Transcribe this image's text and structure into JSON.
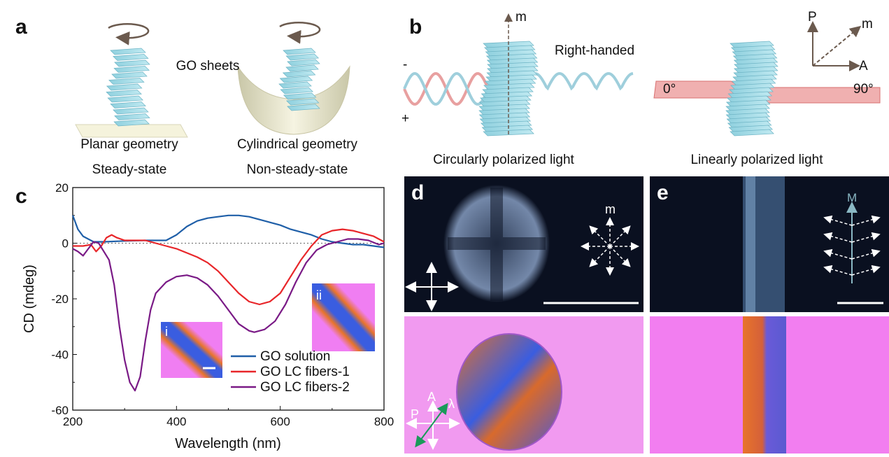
{
  "panels": {
    "a": {
      "label": "a",
      "go_sheets": "GO sheets",
      "planar": "Planar geometry",
      "cylindrical": "Cylindrical geometry",
      "steady": "Steady-state",
      "non_steady": "Non-steady-state"
    },
    "b": {
      "label": "b",
      "m": "m",
      "right_handed": "Right-handed",
      "minus": "-",
      "plus": "+",
      "circular": "Circularly polarized light",
      "linear": "Linearly polarized light",
      "angle0": "0°",
      "angle90": "90°",
      "P": "P",
      "A": "A",
      "m2": "m"
    },
    "c": {
      "label": "c",
      "inset_i": "i",
      "inset_ii": "ii"
    },
    "d": {
      "label": "d",
      "m": "m",
      "A": "A",
      "P": "P",
      "lambda": "λ"
    },
    "e": {
      "label": "e",
      "M": "M"
    }
  },
  "colors": {
    "blue": "#1f5fa8",
    "red": "#e8262a",
    "purple": "#7a1a86",
    "pink": "#f07ef2",
    "dark": "#0a1020"
  },
  "chart_data": {
    "type": "line",
    "title": "",
    "xlabel": "Wavelength (nm)",
    "ylabel": "CD (mdeg)",
    "xlim": [
      200,
      800
    ],
    "ylim": [
      -60,
      20
    ],
    "xticks": [
      "200",
      "400",
      "600",
      "800"
    ],
    "yticks": [
      "20",
      "0",
      "-20",
      "-40",
      "-60"
    ],
    "legend_position": "lower-right",
    "series": [
      {
        "name": "GO solution",
        "color": "#1f5fa8",
        "x": [
          200,
          210,
          220,
          240,
          260,
          300,
          340,
          380,
          400,
          420,
          440,
          460,
          480,
          500,
          520,
          540,
          560,
          580,
          600,
          620,
          640,
          660,
          680,
          700,
          720,
          740,
          760,
          780,
          800
        ],
        "y": [
          10,
          5,
          2.5,
          0.5,
          0.5,
          0.8,
          1,
          1,
          3,
          6,
          8,
          9,
          9.5,
          10,
          10,
          9.5,
          8.5,
          7.5,
          6.5,
          5,
          4,
          3,
          1.5,
          0.5,
          0,
          -0.5,
          -0.5,
          -1,
          -1.5
        ]
      },
      {
        "name": "GO LC fibers-1",
        "color": "#e8262a",
        "x": [
          200,
          220,
          235,
          245,
          255,
          265,
          275,
          285,
          300,
          340,
          360,
          380,
          400,
          420,
          440,
          460,
          480,
          500,
          520,
          540,
          560,
          580,
          600,
          620,
          640,
          660,
          680,
          700,
          720,
          740,
          760,
          780,
          800
        ],
        "y": [
          -1,
          -1,
          -0.5,
          -3,
          -1,
          2,
          3,
          2,
          1,
          1,
          0,
          -1,
          -2,
          -3.5,
          -5,
          -7,
          -10,
          -14,
          -18,
          -21,
          -22,
          -21,
          -18,
          -12,
          -6,
          -1,
          3,
          4.5,
          5,
          4.5,
          3.5,
          2.5,
          0.5
        ]
      },
      {
        "name": "GO LC fibers-2",
        "color": "#7a1a86",
        "x": [
          200,
          210,
          220,
          230,
          240,
          250,
          260,
          270,
          280,
          290,
          300,
          310,
          320,
          330,
          340,
          350,
          360,
          380,
          400,
          420,
          440,
          460,
          480,
          500,
          520,
          540,
          550,
          570,
          590,
          610,
          630,
          650,
          670,
          690,
          710,
          730,
          750,
          770,
          790,
          800
        ],
        "y": [
          -2,
          -3,
          -4.5,
          -2,
          0.5,
          0,
          -3,
          -6,
          -15,
          -30,
          -42,
          -50,
          -53,
          -48,
          -35,
          -24,
          -18,
          -14,
          -12,
          -11.5,
          -12.5,
          -15,
          -19,
          -24,
          -29,
          -31.5,
          -32,
          -31,
          -28,
          -22,
          -14,
          -7,
          -2.5,
          -0.5,
          0.5,
          1.5,
          1.5,
          1,
          -0.5,
          0
        ]
      }
    ]
  }
}
